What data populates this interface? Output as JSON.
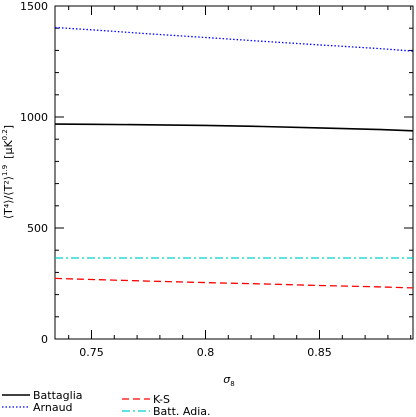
{
  "chart_data": {
    "type": "line",
    "title": "",
    "xlabel": "σ",
    "xlabel_sub": "8",
    "ylabel": "⟨T⁴⟩/⟨T²⟩",
    "ylabel_sup": "1.9",
    "ylabel_unit": "[μK",
    "ylabel_unit_sup": "0.2",
    "ylabel_unit_close": "]",
    "xlim": [
      0.734,
      0.891
    ],
    "ylim": [
      0,
      1500
    ],
    "xticks": [
      0.75,
      0.8,
      0.85
    ],
    "xtick_labels": [
      "0.75",
      "0.8",
      "0.85"
    ],
    "yticks": [
      0,
      500,
      1000,
      1500
    ],
    "ytick_labels": [
      "0",
      "500",
      "1000",
      "1500"
    ],
    "grid": false,
    "legend_position": "below plot, two columns",
    "series": [
      {
        "name": "Battaglia",
        "color": "#000000",
        "dash": "solid",
        "x": [
          0.734,
          0.75,
          0.775,
          0.8,
          0.825,
          0.85,
          0.875,
          0.891
        ],
        "y": [
          968,
          967,
          965,
          962,
          957,
          951,
          944,
          938
        ]
      },
      {
        "name": "Arnaud",
        "color": "#0000ff",
        "dash": "dotted",
        "x": [
          0.734,
          0.75,
          0.775,
          0.8,
          0.825,
          0.85,
          0.875,
          0.891
        ],
        "y": [
          1403,
          1393,
          1375,
          1358,
          1341,
          1325,
          1309,
          1297
        ]
      },
      {
        "name": "K-S",
        "color": "#ff0000",
        "dash": "dashed",
        "x": [
          0.734,
          0.75,
          0.775,
          0.8,
          0.825,
          0.85,
          0.875,
          0.891
        ],
        "y": [
          273,
          268,
          261,
          254,
          248,
          241,
          235,
          230
        ]
      },
      {
        "name": "Batt. Adia.",
        "color": "#00d0d0",
        "dash": "dashdot",
        "x": [
          0.734,
          0.75,
          0.775,
          0.8,
          0.825,
          0.85,
          0.875,
          0.891
        ],
        "y": [
          365,
          365,
          365,
          365,
          365,
          365,
          365,
          365
        ]
      }
    ]
  }
}
